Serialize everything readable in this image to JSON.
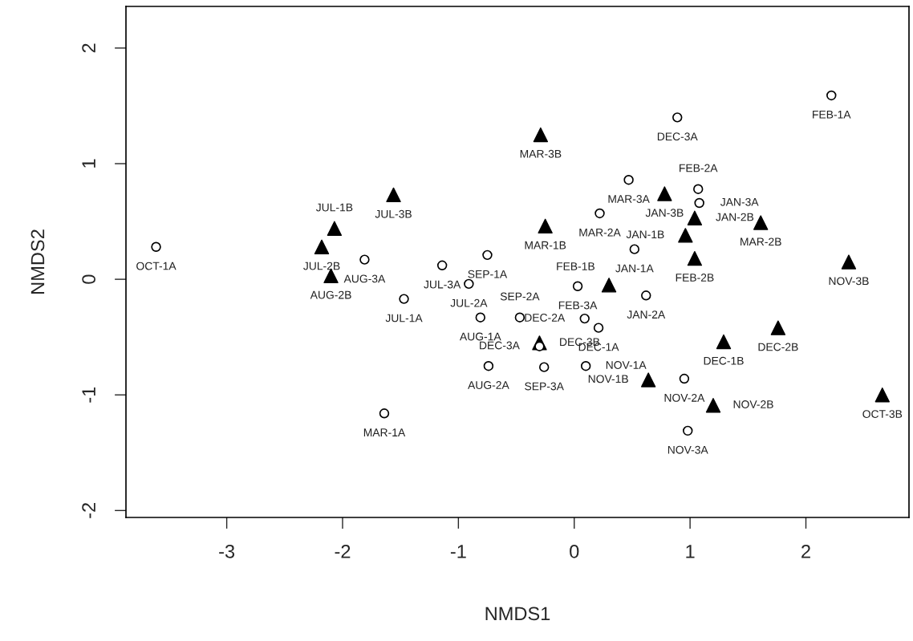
{
  "chart_data": {
    "type": "scatter",
    "xlabel": "NMDS1",
    "ylabel": "NMDS2",
    "xlim": [
      -3.87,
      2.89
    ],
    "ylim": [
      -2.06,
      2.36
    ],
    "xticks": [
      -3,
      -2,
      -1,
      0,
      1,
      2
    ],
    "yticks": [
      -2,
      -1,
      0,
      1,
      2
    ],
    "grid": false,
    "legend": false,
    "series": [
      {
        "marker": "circle",
        "color": "#000000",
        "x": [
          -3.61,
          2.22,
          0.89,
          0.47,
          1.07,
          1.08,
          0.22,
          0.52,
          -1.81,
          -1.14,
          -0.75,
          -0.91,
          -1.47,
          -0.81,
          -0.47,
          0.03,
          0.09,
          0.62,
          0.21,
          -0.3,
          -0.26,
          -0.74,
          0.1,
          0.95,
          0.98,
          -1.64
        ],
        "values": [
          0.28,
          1.59,
          1.4,
          0.86,
          0.78,
          0.66,
          0.57,
          0.26,
          0.17,
          0.12,
          0.21,
          -0.04,
          -0.17,
          -0.33,
          -0.33,
          -0.06,
          -0.34,
          -0.14,
          -0.42,
          -0.58,
          -0.76,
          -0.75,
          -0.75,
          -0.86,
          -1.31,
          -1.16
        ]
      },
      {
        "marker": "triangle",
        "color": "#000000",
        "x": [
          -0.29,
          -1.56,
          -2.07,
          -2.18,
          -2.1,
          -0.25,
          0.78,
          1.04,
          0.96,
          1.04,
          0.3,
          1.61,
          2.37,
          1.76,
          1.29,
          0.64,
          1.2,
          2.66,
          -0.3
        ],
        "values": [
          1.25,
          0.73,
          0.44,
          0.28,
          0.03,
          0.46,
          0.74,
          0.53,
          0.38,
          0.18,
          -0.05,
          0.49,
          0.15,
          -0.42,
          -0.54,
          -0.87,
          -1.09,
          -1.0,
          -0.55
        ]
      }
    ],
    "annotations": [
      {
        "text": "OCT-1A",
        "x": -3.61,
        "y": 0.28
      },
      {
        "text": "FEB-1A",
        "x": 2.22,
        "y": 1.59
      },
      {
        "text": "DEC-3A",
        "x": 0.89,
        "y": 1.4
      },
      {
        "text": "MAR-3A",
        "x": 0.47,
        "y": 0.86
      },
      {
        "text": "FEB-2A",
        "x": 1.07,
        "y": 0.78
      },
      {
        "text": "JAN-3A",
        "x": 1.08,
        "y": 0.66
      },
      {
        "text": "MAR-2A",
        "x": 0.22,
        "y": 0.57
      },
      {
        "text": "JAN-1A",
        "x": 0.52,
        "y": 0.26
      },
      {
        "text": "AUG-3A",
        "x": -1.81,
        "y": 0.17
      },
      {
        "text": "JUL-3A",
        "x": -1.14,
        "y": 0.12
      },
      {
        "text": "SEP-1A",
        "x": -0.75,
        "y": 0.21
      },
      {
        "text": "JUL-2A",
        "x": -0.91,
        "y": -0.04
      },
      {
        "text": "JUL-1A",
        "x": -1.47,
        "y": -0.17
      },
      {
        "text": "AUG-1A",
        "x": -0.81,
        "y": -0.33
      },
      {
        "text": "SEP-2A",
        "x": -0.47,
        "y": -0.33
      },
      {
        "text": "FEB-3A",
        "x": 0.03,
        "y": -0.06
      },
      {
        "text": "DEC-2A",
        "x": 0.09,
        "y": -0.34
      },
      {
        "text": "JAN-2A",
        "x": 0.62,
        "y": -0.14
      },
      {
        "text": "DEC-1A",
        "x": 0.21,
        "y": -0.42
      },
      {
        "text": "DEC-3A",
        "x": -0.3,
        "y": -0.58
      },
      {
        "text": "SEP-3A",
        "x": -0.26,
        "y": -0.76
      },
      {
        "text": "AUG-2A",
        "x": -0.74,
        "y": -0.75
      },
      {
        "text": "NOV-1A",
        "x": 0.1,
        "y": -0.75
      },
      {
        "text": "NOV-2A",
        "x": 0.95,
        "y": -0.86
      },
      {
        "text": "NOV-3A",
        "x": 0.98,
        "y": -1.31
      },
      {
        "text": "MAR-1A",
        "x": -1.64,
        "y": -1.16
      },
      {
        "text": "MAR-3B",
        "x": -0.29,
        "y": 1.25
      },
      {
        "text": "JUL-3B",
        "x": -1.56,
        "y": 0.73
      },
      {
        "text": "JUL-1B",
        "x": -2.07,
        "y": 0.44
      },
      {
        "text": "JUL-2B",
        "x": -2.18,
        "y": 0.28
      },
      {
        "text": "AUG-2B",
        "x": -2.1,
        "y": 0.03
      },
      {
        "text": "MAR-1B",
        "x": -0.25,
        "y": 0.46
      },
      {
        "text": "JAN-3B",
        "x": 0.78,
        "y": 0.74
      },
      {
        "text": "JAN-2B",
        "x": 1.04,
        "y": 0.53
      },
      {
        "text": "JAN-1B",
        "x": 0.96,
        "y": 0.38
      },
      {
        "text": "FEB-2B",
        "x": 1.04,
        "y": 0.18
      },
      {
        "text": "FEB-1B",
        "x": 0.3,
        "y": -0.05
      },
      {
        "text": "MAR-2B",
        "x": 1.61,
        "y": 0.49
      },
      {
        "text": "NOV-3B",
        "x": 2.37,
        "y": 0.15
      },
      {
        "text": "DEC-2B",
        "x": 1.76,
        "y": -0.42
      },
      {
        "text": "DEC-1B",
        "x": 1.29,
        "y": -0.54
      },
      {
        "text": "NOV-1B",
        "x": 0.64,
        "y": -0.87
      },
      {
        "text": "NOV-2B",
        "x": 1.2,
        "y": -1.09
      },
      {
        "text": "OCT-3B",
        "x": 2.66,
        "y": -1.0
      },
      {
        "text": "DEC-3B",
        "x": -0.3,
        "y": -0.55
      }
    ]
  }
}
